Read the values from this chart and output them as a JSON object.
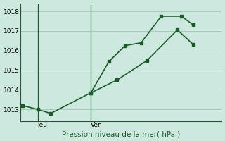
{
  "background_color": "#cce8df",
  "grid_color": "#aaccbb",
  "line_color": "#1a5c28",
  "axis_color": "#1a5c28",
  "title": "Pression niveau de la mer( hPa )",
  "ylabel_ticks": [
    1013,
    1014,
    1015,
    1016,
    1017,
    1018
  ],
  "ylim": [
    1012.4,
    1018.4
  ],
  "xlim": [
    0.0,
    10.0
  ],
  "xtick_positions": [
    0.85,
    3.5
  ],
  "xtick_labels": [
    "Jeu",
    "Ven"
  ],
  "vline_x": [
    0.85,
    3.5
  ],
  "series1_x": [
    0.1,
    0.85,
    1.5,
    3.5,
    4.4,
    5.2,
    6.0,
    7.0,
    8.0,
    8.6
  ],
  "series1_y": [
    1013.2,
    1013.0,
    1012.8,
    1013.85,
    1015.45,
    1016.25,
    1016.4,
    1017.75,
    1017.75,
    1017.3
  ],
  "series2_x": [
    3.5,
    4.8,
    6.3,
    7.8,
    8.6
  ],
  "series2_y": [
    1013.85,
    1014.5,
    1015.5,
    1017.05,
    1016.3
  ],
  "marker_size": 3,
  "line_width": 1.2,
  "tick_fontsize": 6.5,
  "title_fontsize": 7.5
}
